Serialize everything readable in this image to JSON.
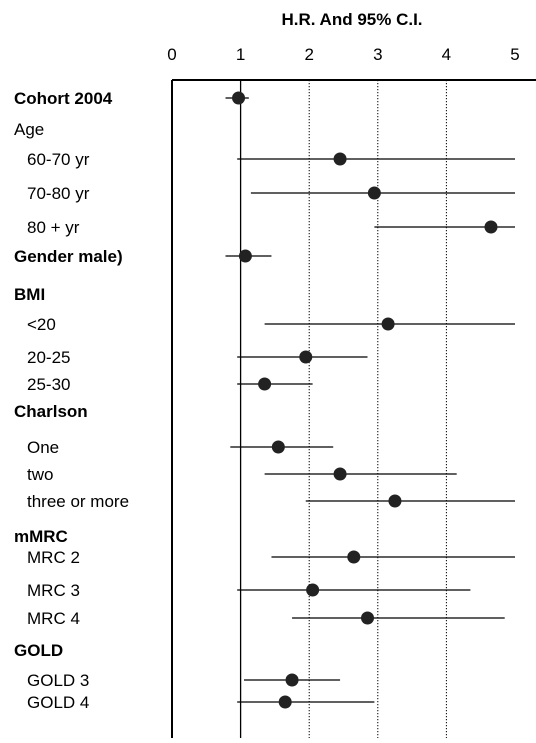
{
  "chart_data": {
    "type": "forest",
    "title": "H.R. And 95% C.I.",
    "xlim": [
      0,
      5
    ],
    "xticks": [
      0,
      1,
      2,
      3,
      4,
      5
    ],
    "reference_lines": [
      1,
      2,
      3,
      4
    ],
    "colors": {
      "points": "#222222",
      "lines": "#000000",
      "ref_lines": "#000000"
    },
    "rows": [
      {
        "label": "Cohort 2004",
        "bold": true,
        "indent": false,
        "hr": 0.97,
        "lo": 0.78,
        "hi": 1.12
      },
      {
        "label": "Age",
        "bold": false,
        "indent": false
      },
      {
        "label": "60-70 yr",
        "bold": false,
        "indent": true,
        "hr": 2.45,
        "lo": 0.95,
        "hi": 5.0
      },
      {
        "label": "70-80 yr",
        "bold": false,
        "indent": true,
        "hr": 2.95,
        "lo": 1.15,
        "hi": 5.0
      },
      {
        "label": "80 + yr",
        "bold": false,
        "indent": true,
        "hr": 4.65,
        "lo": 2.95,
        "hi": 5.0
      },
      {
        "label": "Gender male)",
        "bold": true,
        "indent": false,
        "hr": 1.07,
        "lo": 0.78,
        "hi": 1.45
      },
      {
        "label": "BMI",
        "bold": true,
        "indent": false
      },
      {
        "label": "<20",
        "bold": false,
        "indent": true,
        "hr": 3.15,
        "lo": 1.35,
        "hi": 5.0
      },
      {
        "label": "20-25",
        "bold": false,
        "indent": true,
        "hr": 1.95,
        "lo": 0.95,
        "hi": 2.85
      },
      {
        "label": "25-30",
        "bold": false,
        "indent": true,
        "hr": 1.35,
        "lo": 0.95,
        "hi": 2.05
      },
      {
        "label": "Charlson",
        "bold": true,
        "indent": false
      },
      {
        "label": "One",
        "bold": false,
        "indent": true,
        "hr": 1.55,
        "lo": 0.85,
        "hi": 2.35
      },
      {
        "label": "two",
        "bold": false,
        "indent": true,
        "hr": 2.45,
        "lo": 1.35,
        "hi": 4.15
      },
      {
        "label": "three or more",
        "bold": false,
        "indent": true,
        "hr": 3.25,
        "lo": 1.95,
        "hi": 5.0
      },
      {
        "label": "mMRC",
        "bold": true,
        "indent": false
      },
      {
        "label": "MRC 2",
        "bold": false,
        "indent": true,
        "hr": 2.65,
        "lo": 1.45,
        "hi": 5.0
      },
      {
        "label": "MRC 3",
        "bold": false,
        "indent": true,
        "hr": 2.05,
        "lo": 0.95,
        "hi": 4.35
      },
      {
        "label": "MRC 4",
        "bold": false,
        "indent": true,
        "hr": 2.85,
        "lo": 1.75,
        "hi": 4.85
      },
      {
        "label": "GOLD",
        "bold": true,
        "indent": false
      },
      {
        "label": "GOLD 3",
        "bold": false,
        "indent": true,
        "hr": 1.75,
        "lo": 1.05,
        "hi": 2.45
      },
      {
        "label": "GOLD 4",
        "bold": false,
        "indent": true,
        "hr": 1.65,
        "lo": 0.95,
        "hi": 2.95
      }
    ]
  }
}
